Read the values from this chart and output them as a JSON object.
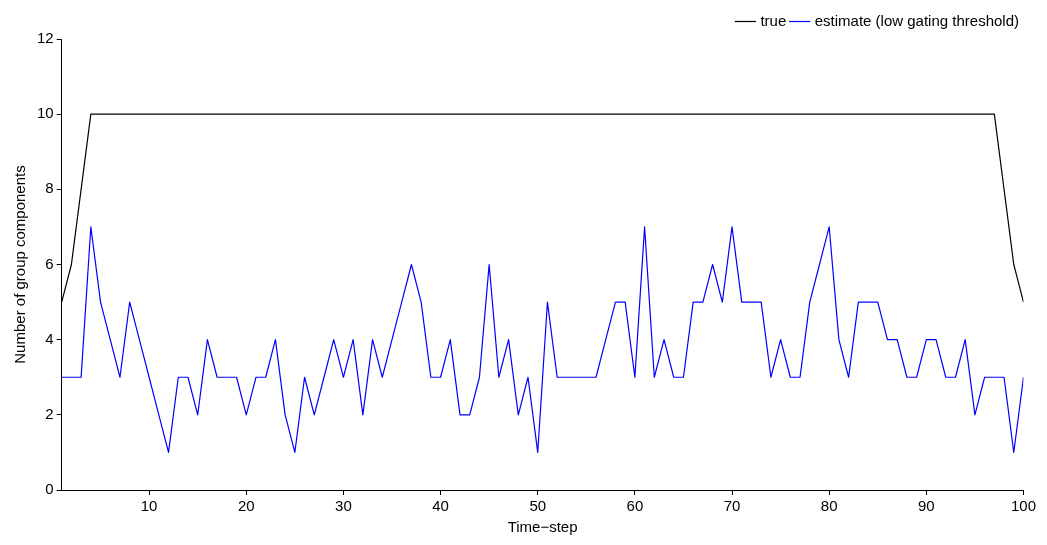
{
  "chart_data": {
    "type": "line",
    "xlabel": "Time−step",
    "ylabel": "Number of group components",
    "x": [
      1,
      2,
      3,
      4,
      5,
      6,
      7,
      8,
      9,
      10,
      11,
      12,
      13,
      14,
      15,
      16,
      17,
      18,
      19,
      20,
      21,
      22,
      23,
      24,
      25,
      26,
      27,
      28,
      29,
      30,
      31,
      32,
      33,
      34,
      35,
      36,
      37,
      38,
      39,
      40,
      41,
      42,
      43,
      44,
      45,
      46,
      47,
      48,
      49,
      50,
      51,
      52,
      53,
      54,
      55,
      56,
      57,
      58,
      59,
      60,
      61,
      62,
      63,
      64,
      65,
      66,
      67,
      68,
      69,
      70,
      71,
      72,
      73,
      74,
      75,
      76,
      77,
      78,
      79,
      80,
      81,
      82,
      83,
      84,
      85,
      86,
      87,
      88,
      89,
      90,
      91,
      92,
      93,
      94,
      95,
      96,
      97,
      98,
      99,
      100
    ],
    "series": [
      {
        "name": "true",
        "color": "#000000",
        "values": [
          5,
          6,
          8,
          10,
          10,
          10,
          10,
          10,
          10,
          10,
          10,
          10,
          10,
          10,
          10,
          10,
          10,
          10,
          10,
          10,
          10,
          10,
          10,
          10,
          10,
          10,
          10,
          10,
          10,
          10,
          10,
          10,
          10,
          10,
          10,
          10,
          10,
          10,
          10,
          10,
          10,
          10,
          10,
          10,
          10,
          10,
          10,
          10,
          10,
          10,
          10,
          10,
          10,
          10,
          10,
          10,
          10,
          10,
          10,
          10,
          10,
          10,
          10,
          10,
          10,
          10,
          10,
          10,
          10,
          10,
          10,
          10,
          10,
          10,
          10,
          10,
          10,
          10,
          10,
          10,
          10,
          10,
          10,
          10,
          10,
          10,
          10,
          10,
          10,
          10,
          10,
          10,
          10,
          10,
          10,
          10,
          10,
          8,
          6,
          5
        ]
      },
      {
        "name": "estimate (low gating threshold)",
        "color": "#0000ff",
        "values": [
          3,
          3,
          3,
          7,
          5,
          4,
          3,
          5,
          4,
          3,
          2,
          1,
          3,
          3,
          2,
          4,
          3,
          3,
          3,
          2,
          3,
          3,
          4,
          2,
          1,
          3,
          2,
          3,
          4,
          3,
          4,
          2,
          4,
          3,
          4,
          5,
          6,
          5,
          3,
          3,
          4,
          2,
          2,
          3,
          6,
          3,
          4,
          2,
          3,
          1,
          5,
          3,
          3,
          3,
          3,
          3,
          4,
          5,
          5,
          3,
          7,
          3,
          4,
          3,
          3,
          5,
          5,
          6,
          5,
          7,
          5,
          5,
          5,
          3,
          4,
          3,
          3,
          5,
          6,
          7,
          4,
          3,
          5,
          5,
          5,
          4,
          4,
          3,
          3,
          4,
          4,
          3,
          3,
          4,
          2,
          3,
          3,
          3,
          1,
          3
        ]
      }
    ],
    "xlim": [
      1,
      100
    ],
    "xticks": [
      10,
      20,
      30,
      40,
      50,
      60,
      70,
      80,
      90,
      100
    ],
    "ylim": [
      0,
      12
    ],
    "yticks": [
      0,
      2,
      4,
      6,
      8,
      10,
      12
    ],
    "grid": false,
    "legend": "top right",
    "marker": "none",
    "line_style": "solid"
  }
}
